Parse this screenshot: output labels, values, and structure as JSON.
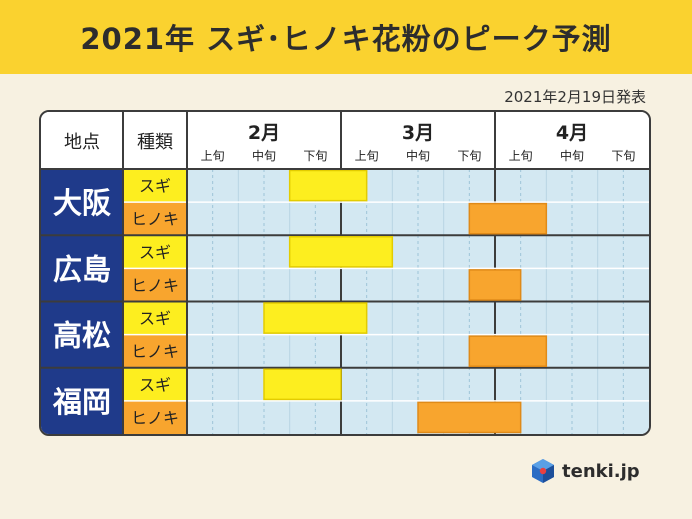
{
  "title": "2021年 スギ･ヒノキ花粉のピーク予測",
  "issued": "2021年2月19日発表",
  "table_header": {
    "location": "地点",
    "type": "種類",
    "months": [
      "2月",
      "3月",
      "4月"
    ],
    "periods": [
      "上旬",
      "中旬",
      "下旬"
    ]
  },
  "colors": {
    "title_bg": "#fad22f",
    "region_bg": "#1f3a8a",
    "sugi": "#fdee1f",
    "hinoki": "#f8a52e",
    "grid_bg": "#d3e8f2"
  },
  "logo": {
    "text": "tenki.jp"
  },
  "chart_data": {
    "type": "gantt",
    "title": "2021年 スギ･ヒノキ花粉のピーク予測",
    "units": "旬 (ten-day periods)",
    "x_categories": [
      "2月上旬",
      "2月中旬",
      "2月下旬",
      "3月上旬",
      "3月中旬",
      "3月下旬",
      "4月上旬",
      "4月中旬",
      "4月下旬"
    ],
    "x_range": [
      0,
      9
    ],
    "rows": [
      {
        "location": "大阪",
        "type": "スギ",
        "start": 2.0,
        "end": 3.5
      },
      {
        "location": "大阪",
        "type": "ヒノキ",
        "start": 5.5,
        "end": 7.0
      },
      {
        "location": "広島",
        "type": "スギ",
        "start": 2.0,
        "end": 4.0
      },
      {
        "location": "広島",
        "type": "ヒノキ",
        "start": 5.5,
        "end": 6.5
      },
      {
        "location": "高松",
        "type": "スギ",
        "start": 1.5,
        "end": 3.5
      },
      {
        "location": "高松",
        "type": "ヒノキ",
        "start": 5.5,
        "end": 7.0
      },
      {
        "location": "福岡",
        "type": "スギ",
        "start": 1.5,
        "end": 3.0
      },
      {
        "location": "福岡",
        "type": "ヒノキ",
        "start": 4.5,
        "end": 6.5
      }
    ]
  }
}
